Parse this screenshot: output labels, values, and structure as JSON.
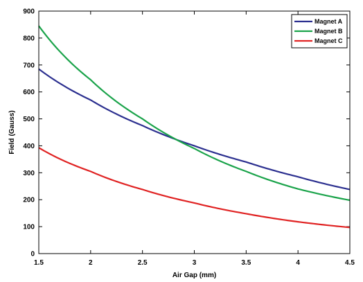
{
  "chart_data": {
    "type": "line",
    "title": "",
    "xlabel": "Air Gap (mm)",
    "ylabel": "Field (Gauss)",
    "xlim": [
      1.5,
      4.5
    ],
    "ylim": [
      0,
      900
    ],
    "xticks": [
      1.5,
      2,
      2.5,
      3,
      3.5,
      4,
      4.5
    ],
    "xtick_labels": [
      "1.5",
      "2",
      "2.5",
      "3",
      "3.5",
      "4",
      "4.5"
    ],
    "yticks": [
      0,
      100,
      200,
      300,
      400,
      500,
      600,
      700,
      800,
      900
    ],
    "ytick_labels": [
      "0",
      "100",
      "200",
      "300",
      "400",
      "500",
      "600",
      "700",
      "800",
      "900"
    ],
    "grid": false,
    "legend_position": "top-right",
    "x": [
      1.5,
      2,
      2.5,
      3,
      3.5,
      4,
      4.5
    ],
    "series": [
      {
        "name": "Magnet A",
        "color": "#2b2f8f",
        "values": [
          685,
          570,
          475,
          400,
          340,
          285,
          238
        ]
      },
      {
        "name": "Magnet B",
        "color": "#1aa34a",
        "values": [
          845,
          645,
          500,
          390,
          305,
          240,
          198
        ]
      },
      {
        "name": "Magnet C",
        "color": "#e02222",
        "values": [
          393,
          305,
          238,
          188,
          148,
          118,
          97
        ]
      }
    ]
  }
}
